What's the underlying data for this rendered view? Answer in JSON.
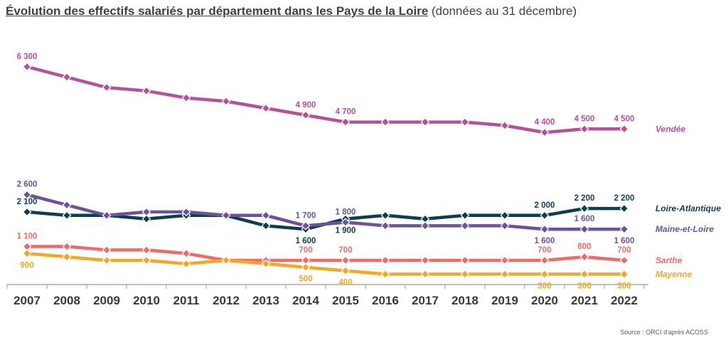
{
  "title": "Évolution des effectifs salariés par département dans les Pays de la Loire",
  "subtitle": "(données au 31 décembre)",
  "source": "Source : ORCI d'après ACOSS",
  "chart_data": {
    "type": "line",
    "categories": [
      "2007",
      "2008",
      "2009",
      "2010",
      "2011",
      "2012",
      "2013",
      "2014",
      "2015",
      "2016",
      "2017",
      "2018",
      "2019",
      "2020",
      "2021",
      "2022"
    ],
    "xlabel": "",
    "ylabel": "",
    "ylim": [
      0,
      6700
    ],
    "grid": false,
    "legend_placement": "right",
    "series": [
      {
        "name": "Vendée",
        "color": "#b5509b",
        "marker": "diamond",
        "values": [
          6300,
          6000,
          5700,
          5600,
          5400,
          5300,
          5100,
          4900,
          4700,
          4700,
          4700,
          4700,
          4600,
          4400,
          4500,
          4500
        ],
        "labels": [
          {
            "i": 0,
            "text": "6 300",
            "pos": "above"
          },
          {
            "i": 7,
            "text": "4 900",
            "pos": "above"
          },
          {
            "i": 8,
            "text": "4 700",
            "pos": "above"
          },
          {
            "i": 13,
            "text": "4 400",
            "pos": "above"
          },
          {
            "i": 14,
            "text": "4 500",
            "pos": "above"
          },
          {
            "i": 15,
            "text": "4 500",
            "pos": "above"
          }
        ]
      },
      {
        "name": "Loire-Atlantique",
        "color": "#0e3e4d",
        "marker": "diamond",
        "values": [
          2100,
          2000,
          2000,
          1900,
          2000,
          2000,
          1700,
          1600,
          1900,
          2000,
          1900,
          2000,
          2000,
          2000,
          2200,
          2200
        ],
        "labels": [
          {
            "i": 0,
            "text": "2 100",
            "pos": "above"
          },
          {
            "i": 7,
            "text": "1 600",
            "pos": "below"
          },
          {
            "i": 8,
            "text": "1 900",
            "pos": "below"
          },
          {
            "i": 13,
            "text": "2 000",
            "pos": "above"
          },
          {
            "i": 14,
            "text": "2 200",
            "pos": "above"
          },
          {
            "i": 15,
            "text": "2 200",
            "pos": "above"
          }
        ]
      },
      {
        "name": "Maine-et-Loire",
        "color": "#6b529a",
        "marker": "diamond",
        "values": [
          2600,
          2300,
          2000,
          2100,
          2100,
          2000,
          2000,
          1700,
          1800,
          1700,
          1700,
          1700,
          1700,
          1600,
          1600,
          1600
        ],
        "labels": [
          {
            "i": 0,
            "text": "2 600",
            "pos": "above"
          },
          {
            "i": 7,
            "text": "1 700",
            "pos": "above"
          },
          {
            "i": 8,
            "text": "1 800",
            "pos": "above"
          },
          {
            "i": 13,
            "text": "1 600",
            "pos": "below"
          },
          {
            "i": 14,
            "text": "1 600",
            "pos": "above"
          },
          {
            "i": 15,
            "text": "1 600",
            "pos": "below"
          }
        ]
      },
      {
        "name": "Sarthe",
        "color": "#f06a6a",
        "marker": "diamond",
        "values": [
          1100,
          1100,
          1000,
          1000,
          900,
          700,
          700,
          700,
          700,
          700,
          700,
          700,
          700,
          700,
          800,
          700
        ],
        "labels": [
          {
            "i": 0,
            "text": "1 100",
            "pos": "above"
          },
          {
            "i": 7,
            "text": "700",
            "pos": "above"
          },
          {
            "i": 8,
            "text": "700",
            "pos": "above"
          },
          {
            "i": 13,
            "text": "700",
            "pos": "above"
          },
          {
            "i": 14,
            "text": "800",
            "pos": "above"
          },
          {
            "i": 15,
            "text": "700",
            "pos": "above"
          }
        ]
      },
      {
        "name": "Mayenne",
        "color": "#f5a623",
        "marker": "diamond",
        "values": [
          900,
          800,
          700,
          700,
          600,
          700,
          600,
          500,
          400,
          300,
          300,
          300,
          300,
          300,
          300,
          300
        ],
        "labels": [
          {
            "i": 0,
            "text": "900",
            "pos": "below"
          },
          {
            "i": 7,
            "text": "500",
            "pos": "below"
          },
          {
            "i": 8,
            "text": "400",
            "pos": "below"
          },
          {
            "i": 13,
            "text": "300",
            "pos": "below"
          },
          {
            "i": 14,
            "text": "300",
            "pos": "below"
          },
          {
            "i": 15,
            "text": "300",
            "pos": "below"
          }
        ]
      }
    ]
  }
}
